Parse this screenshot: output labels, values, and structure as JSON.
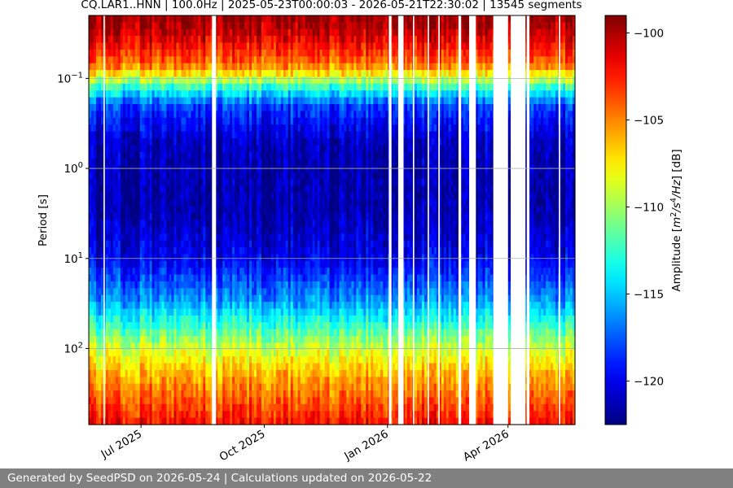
{
  "title": "CQ.LAR1..HNN | 100.0Hz | 2025-05-23T00:00:03 - 2026-05-21T22:30:02 | 13545 segments",
  "footer_text": "Generated by SeedPSD on 2026-05-24 | Calculations updated on 2026-05-22",
  "chart_data": {
    "type": "heatmap",
    "title": "CQ.LAR1..HNN | 100.0Hz | 2025-05-23T00:00:03 - 2026-05-21T22:30:02 | 13545 segments",
    "xlabel": "",
    "ylabel": "Period [s]",
    "x_range": [
      "2025-05-23",
      "2026-05-21"
    ],
    "x_ticks": [
      {
        "date": "2025-07-01",
        "label": "Jul 2025"
      },
      {
        "date": "2025-10-01",
        "label": "Oct 2025"
      },
      {
        "date": "2026-01-01",
        "label": "Jan 2026"
      },
      {
        "date": "2026-04-01",
        "label": "Apr 2026"
      }
    ],
    "y_scale": "log",
    "y_inverted": true,
    "y_range": [
      0.02,
      700
    ],
    "y_ticks": [
      {
        "value": 0.1,
        "base": "10",
        "exp": "−1"
      },
      {
        "value": 1,
        "base": "10",
        "exp": "0"
      },
      {
        "value": 10,
        "base": "10",
        "exp": "1"
      },
      {
        "value": 100,
        "base": "10",
        "exp": "2"
      }
    ],
    "grid": true,
    "colorbar": {
      "label_parts": [
        "Amplitude [",
        "m",
        "2",
        "/",
        "s",
        "4",
        "/",
        "Hz",
        "] [dB]"
      ],
      "range": [
        -122.5,
        -99
      ],
      "ticks": [
        -100,
        -105,
        -110,
        -115,
        -120
      ],
      "tick_labels": [
        "−100",
        "−105",
        "−110",
        "−115",
        "−120"
      ],
      "colormap": "jet"
    },
    "profile": [
      {
        "period": 0.02,
        "db": -99.5
      },
      {
        "period": 0.03,
        "db": -100.5
      },
      {
        "period": 0.07,
        "db": -104.5
      },
      {
        "period": 0.1,
        "db": -109
      },
      {
        "period": 0.13,
        "db": -113
      },
      {
        "period": 0.2,
        "db": -118
      },
      {
        "period": 0.5,
        "db": -121
      },
      {
        "period": 1,
        "db": -121.5
      },
      {
        "period": 3,
        "db": -121.5
      },
      {
        "period": 10,
        "db": -120
      },
      {
        "period": 30,
        "db": -116
      },
      {
        "period": 60,
        "db": -112
      },
      {
        "period": 100,
        "db": -109
      },
      {
        "period": 200,
        "db": -106
      },
      {
        "period": 700,
        "db": -102
      }
    ],
    "data_gaps": [
      {
        "start": "2025-06-03",
        "end": "2025-06-04"
      },
      {
        "start": "2025-08-23",
        "end": "2025-08-26"
      },
      {
        "start": "2026-01-02",
        "end": "2026-01-04"
      },
      {
        "start": "2026-01-09",
        "end": "2026-01-13"
      },
      {
        "start": "2026-01-20",
        "end": "2026-01-21"
      },
      {
        "start": "2026-01-31",
        "end": "2026-02-01"
      },
      {
        "start": "2026-02-08",
        "end": "2026-02-09"
      },
      {
        "start": "2026-02-23",
        "end": "2026-02-25"
      },
      {
        "start": "2026-03-03",
        "end": "2026-03-08"
      },
      {
        "start": "2026-03-21",
        "end": "2026-04-01"
      },
      {
        "start": "2026-04-03",
        "end": "2026-04-14"
      },
      {
        "start": "2026-04-15",
        "end": "2026-04-17"
      },
      {
        "start": "2026-05-09",
        "end": "2026-05-10"
      }
    ]
  }
}
